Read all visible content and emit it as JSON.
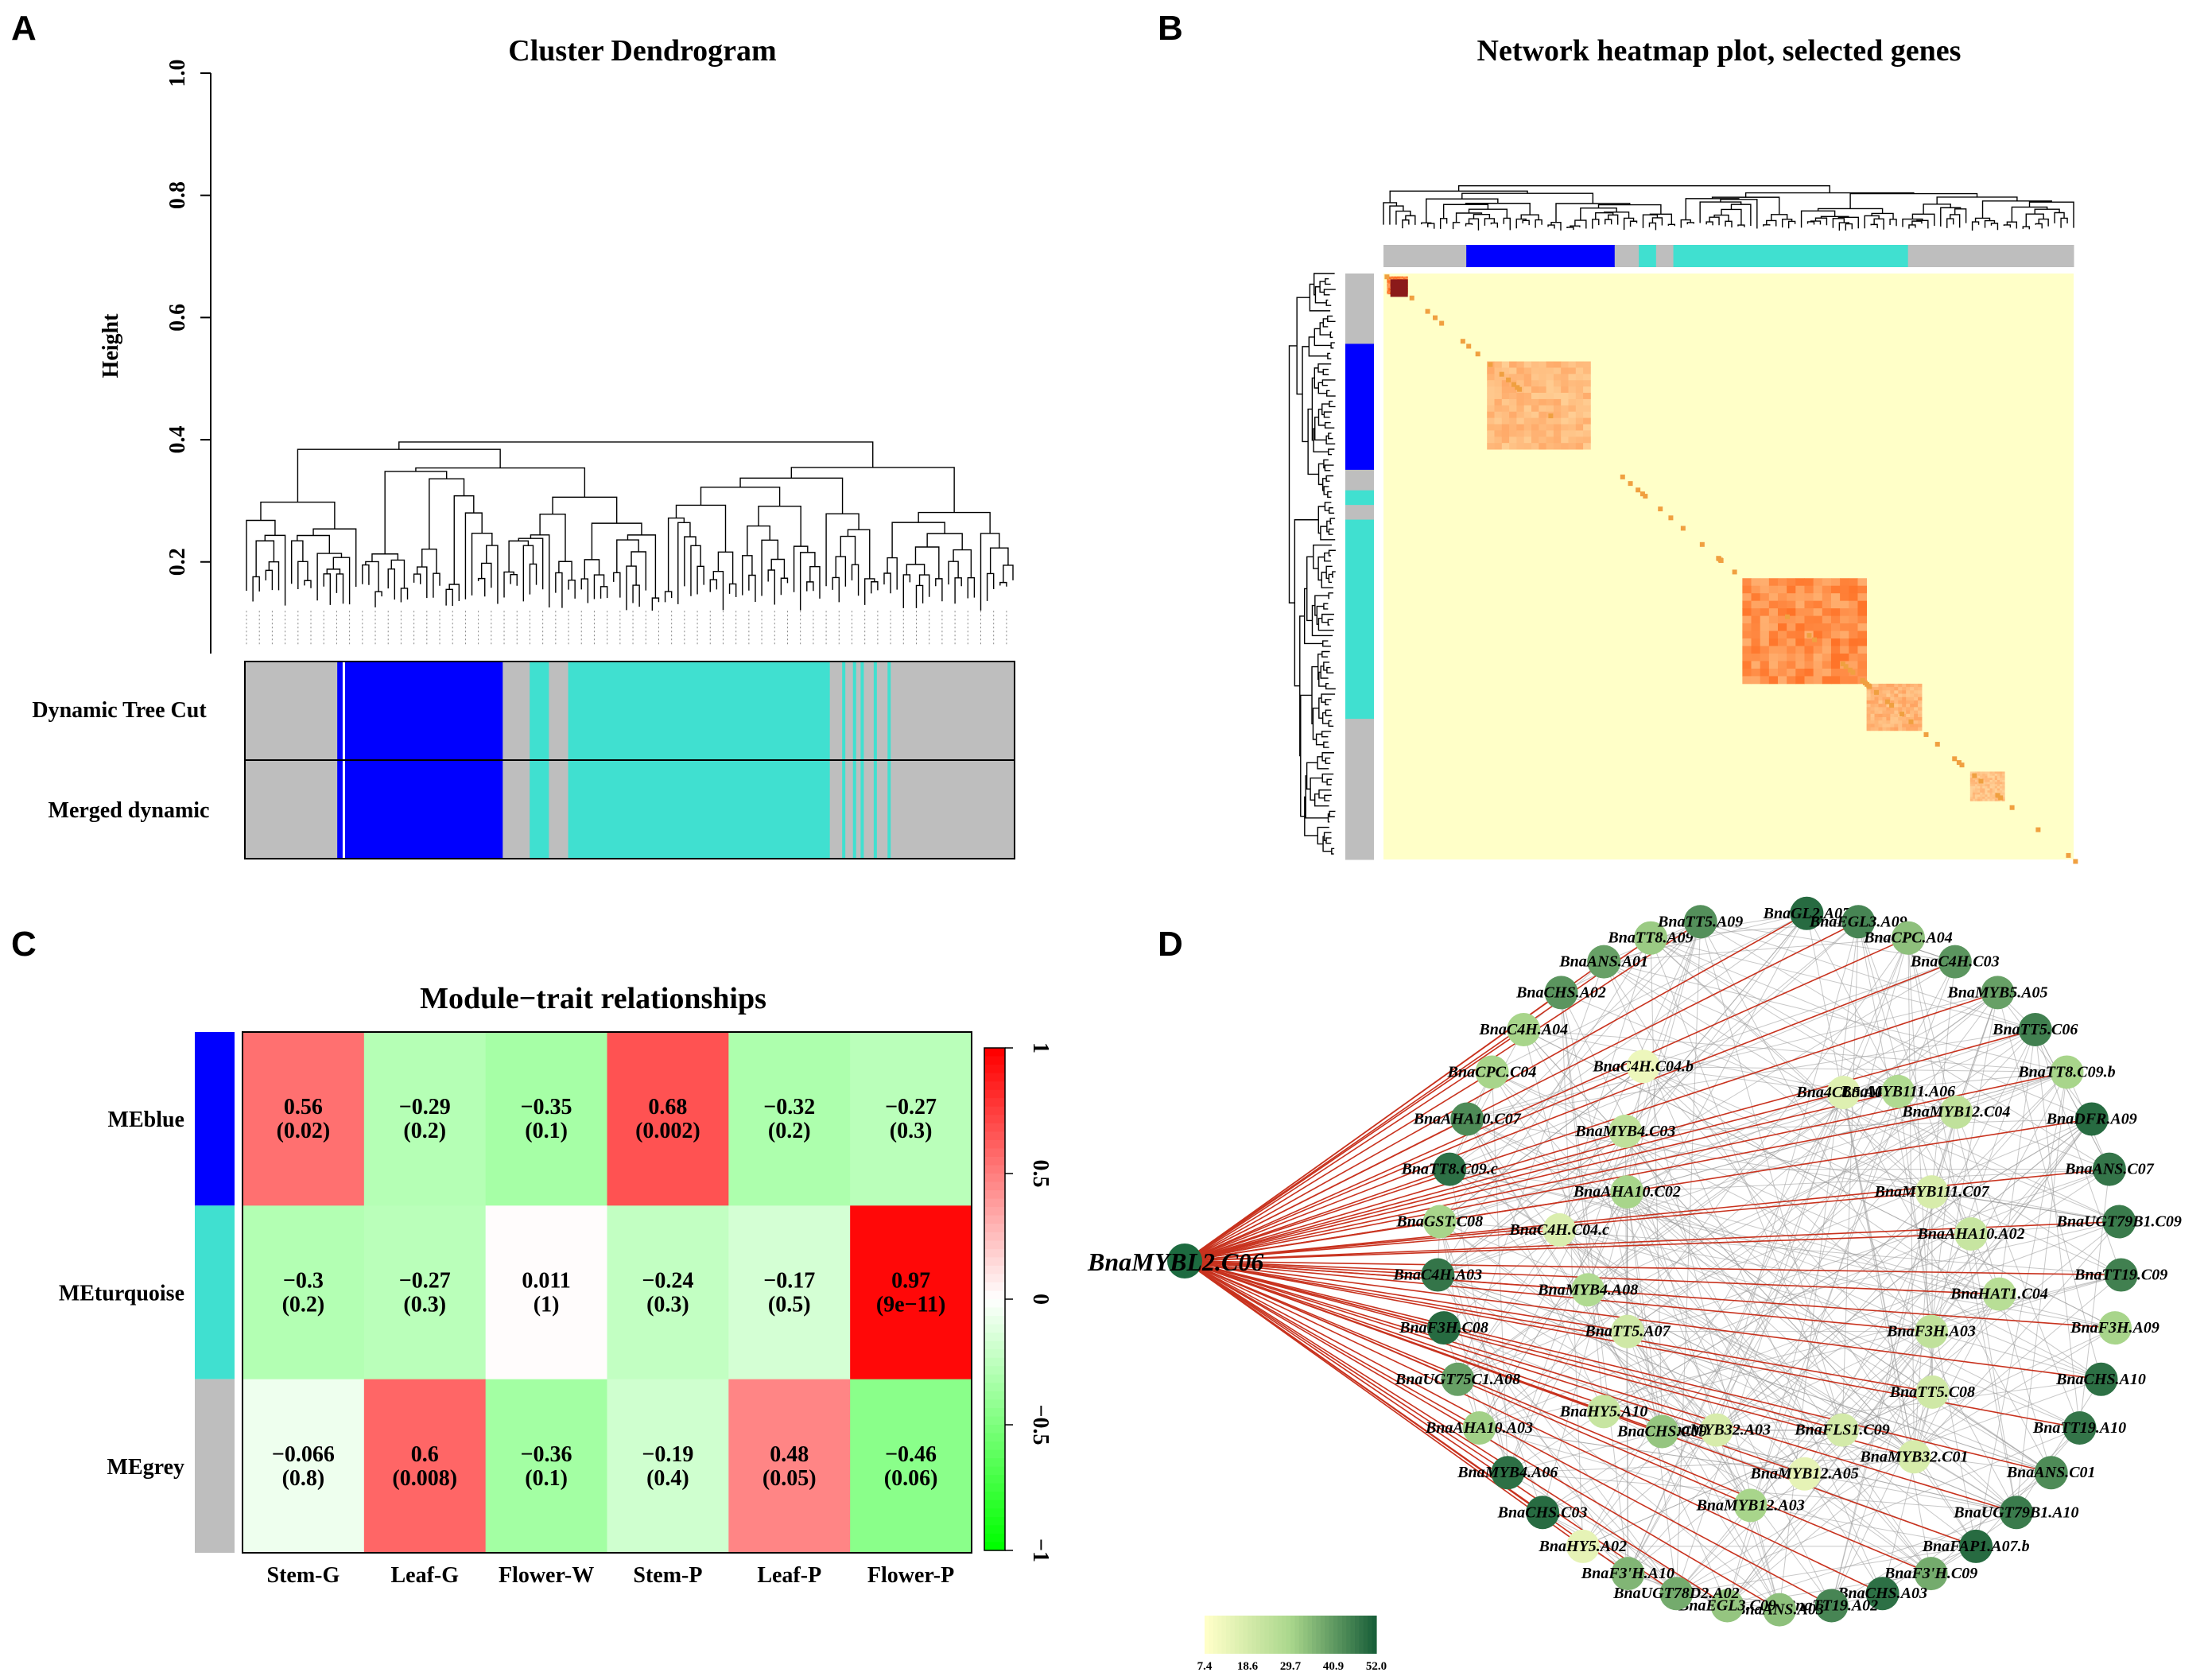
{
  "panels": {
    "A": "A",
    "B": "B",
    "C": "C",
    "D": "D"
  },
  "colors": {
    "blue": "#0000ff",
    "turquoise": "#40e0d0",
    "grey": "#bebebe",
    "hub": "#1d6b40",
    "edge_red": "#c8321e"
  },
  "chart_data": [
    {
      "type": "dendrogram",
      "panel": "A",
      "title": "Cluster Dendrogram",
      "ylabel": "Height",
      "ylim": [
        0.05,
        1.0
      ],
      "yticks": [
        "0.2",
        "0.4",
        "0.6",
        "0.8",
        "1.0"
      ],
      "ytick_values": [
        0.2,
        0.4,
        0.6,
        0.8,
        1.0
      ],
      "color_rows": [
        "Dynamic Tree Cut",
        "Merged dynamic"
      ],
      "module_segments": [
        {
          "module": "grey",
          "from": 0.0,
          "to": 0.12
        },
        {
          "module": "blue",
          "from": 0.12,
          "to": 0.335
        },
        {
          "module": "grey",
          "from": 0.335,
          "to": 0.37
        },
        {
          "module": "turquoise",
          "from": 0.37,
          "to": 0.395
        },
        {
          "module": "grey",
          "from": 0.395,
          "to": 0.42
        },
        {
          "module": "turquoise",
          "from": 0.42,
          "to": 0.76
        },
        {
          "module": "grey",
          "from": 0.76,
          "to": 1.0
        }
      ]
    },
    {
      "type": "heatmap",
      "panel": "B",
      "title": "Network heatmap plot, selected genes",
      "module_segments": [
        {
          "module": "grey",
          "from": 0.0,
          "to": 0.12
        },
        {
          "module": "blue",
          "from": 0.12,
          "to": 0.335
        },
        {
          "module": "grey",
          "from": 0.335,
          "to": 0.37
        },
        {
          "module": "turquoise",
          "from": 0.37,
          "to": 0.395
        },
        {
          "module": "grey",
          "from": 0.395,
          "to": 0.42
        },
        {
          "module": "turquoise",
          "from": 0.42,
          "to": 0.76
        },
        {
          "module": "grey",
          "from": 0.76,
          "to": 1.0
        }
      ],
      "blocks": [
        {
          "from": 0.005,
          "to": 0.035,
          "intensity": 1.0
        },
        {
          "from": 0.15,
          "to": 0.3,
          "intensity": 0.5
        },
        {
          "from": 0.52,
          "to": 0.7,
          "intensity": 0.85
        },
        {
          "from": 0.7,
          "to": 0.78,
          "intensity": 0.55
        },
        {
          "from": 0.85,
          "to": 0.9,
          "intensity": 0.45
        }
      ]
    },
    {
      "type": "heatmap",
      "panel": "C",
      "title": "Module−trait relationships",
      "rows": [
        "MEblue",
        "MEturquoise",
        "MEgrey"
      ],
      "row_colors": [
        "blue",
        "turquoise",
        "grey"
      ],
      "columns": [
        "Stem-G",
        "Leaf-G",
        "Flower-W",
        "Stem-P",
        "Leaf-P",
        "Flower-P"
      ],
      "values": [
        [
          0.56,
          -0.29,
          -0.35,
          0.68,
          -0.32,
          -0.27
        ],
        [
          -0.3,
          -0.27,
          0.011,
          -0.24,
          -0.17,
          0.97
        ],
        [
          -0.066,
          0.6,
          -0.36,
          -0.19,
          0.48,
          -0.46
        ]
      ],
      "value_labels": [
        [
          "0.56",
          "−0.29",
          "−0.35",
          "0.68",
          "−0.32",
          "−0.27"
        ],
        [
          "−0.3",
          "−0.27",
          "0.011",
          "−0.24",
          "−0.17",
          "0.97"
        ],
        [
          "−0.066",
          "0.6",
          "−0.36",
          "−0.19",
          "0.48",
          "−0.46"
        ]
      ],
      "pvalues": [
        [
          "(0.02)",
          "(0.2)",
          "(0.1)",
          "(0.002)",
          "(0.2)",
          "(0.3)"
        ],
        [
          "(0.2)",
          "(0.3)",
          "(1)",
          "(0.3)",
          "(0.5)",
          "(9e−11)"
        ],
        [
          "(0.8)",
          "(0.008)",
          "(0.1)",
          "(0.4)",
          "(0.05)",
          "(0.06)"
        ]
      ],
      "scale_range": [
        -1,
        1
      ],
      "scale_ticks": [
        "1",
        "0.5",
        "0",
        "−0.5",
        "−1"
      ],
      "scale_tick_values": [
        1,
        0.5,
        0,
        -0.5,
        -1
      ]
    },
    {
      "type": "network",
      "panel": "D",
      "hub": "BnaMYBL2.C06",
      "legend_ticks": [
        "7.4",
        "18.6",
        "29.7",
        "40.9",
        "52.0"
      ],
      "legend_range": [
        7.4,
        52.0
      ],
      "outer_nodes": [
        {
          "name": "BnaGL2.A07",
          "value": 50
        },
        {
          "name": "BnaEGL3.A09",
          "value": 45
        },
        {
          "name": "BnaCPC.A04",
          "value": 34
        },
        {
          "name": "BnaC4H.C03",
          "value": 42
        },
        {
          "name": "BnaMYB5.A05",
          "value": 40
        },
        {
          "name": "BnaTT5.C06",
          "value": 46
        },
        {
          "name": "BnaTT8.C09.b",
          "value": 30
        },
        {
          "name": "BnaDFR.A09",
          "value": 50
        },
        {
          "name": "BnaANS.C07",
          "value": 48
        },
        {
          "name": "BnaUGT79B1.C09",
          "value": 47
        },
        {
          "name": "BnaTT19.C09",
          "value": 46
        },
        {
          "name": "BnaF3H.A09",
          "value": 30
        },
        {
          "name": "BnaCHS.A10",
          "value": 49
        },
        {
          "name": "BnaTT19.A10",
          "value": 48
        },
        {
          "name": "BnaANS.C01",
          "value": 44
        },
        {
          "name": "BnaUGT79B1.A10",
          "value": 47
        },
        {
          "name": "BnaFAP1.A07.b",
          "value": 50
        },
        {
          "name": "BnaF3'H.C09",
          "value": 38
        },
        {
          "name": "BnaCHS.A03",
          "value": 49
        },
        {
          "name": "BnaTT19.A02",
          "value": 45
        },
        {
          "name": "BnaANS.A03",
          "value": 34
        },
        {
          "name": "BnaEGL3.C09",
          "value": 33
        },
        {
          "name": "BnaUGT78D2.A02",
          "value": 38
        },
        {
          "name": "BnaF3'H.A10",
          "value": 36
        },
        {
          "name": "BnaHY5.A02",
          "value": 14
        },
        {
          "name": "BnaCHS.C03",
          "value": 50
        },
        {
          "name": "BnaMYB4.A06",
          "value": 49
        },
        {
          "name": "BnaAHA10.A03",
          "value": 31
        },
        {
          "name": "BnaUGT75C1.A08",
          "value": 40
        },
        {
          "name": "BnaF3H.C08",
          "value": 50
        },
        {
          "name": "BnaC4H.A03",
          "value": 48
        },
        {
          "name": "BnaGST.C08",
          "value": 30
        },
        {
          "name": "BnaTT8.C09.c",
          "value": 49
        },
        {
          "name": "BnaAHA10.C07",
          "value": 44
        },
        {
          "name": "BnaCPC.C04",
          "value": 30
        },
        {
          "name": "BnaC4H.A04",
          "value": 30
        },
        {
          "name": "BnaCHS.A02",
          "value": 42
        },
        {
          "name": "BnaANS.A01",
          "value": 40
        },
        {
          "name": "BnaTT8.A09",
          "value": 32
        },
        {
          "name": "BnaTT5.A09",
          "value": 43
        }
      ],
      "inner_nodes": [
        {
          "name": "Bna4CL5.A03",
          "value": 16
        },
        {
          "name": "BnaMYB111.A06",
          "value": 28
        },
        {
          "name": "BnaMYB12.C04",
          "value": 24
        },
        {
          "name": "BnaMYB111.C07",
          "value": 18
        },
        {
          "name": "BnaAHA10.A02",
          "value": 22
        },
        {
          "name": "BnaHAT1.C04",
          "value": 26
        },
        {
          "name": "BnaF3H.A03",
          "value": 24
        },
        {
          "name": "BnaTT5.C08",
          "value": 20
        },
        {
          "name": "BnaMYB32.C01",
          "value": 18
        },
        {
          "name": "BnaFLS1.C09",
          "value": 19
        },
        {
          "name": "BnaMYB12.A05",
          "value": 14
        },
        {
          "name": "BnaMYB12.A03",
          "value": 30
        },
        {
          "name": "BnaMYB32.A03",
          "value": 18
        },
        {
          "name": "BnaCHS.C09",
          "value": 33
        },
        {
          "name": "BnaHY5.A10",
          "value": 22
        },
        {
          "name": "BnaTT5.A07",
          "value": 20
        },
        {
          "name": "BnaMYB4.A08",
          "value": 28
        },
        {
          "name": "BnaC4H.C04.c",
          "value": 17
        },
        {
          "name": "BnaAHA10.C02",
          "value": 30
        },
        {
          "name": "BnaMYB4.C03",
          "value": 24
        },
        {
          "name": "BnaC4H.C04.b",
          "value": 12
        }
      ]
    }
  ]
}
